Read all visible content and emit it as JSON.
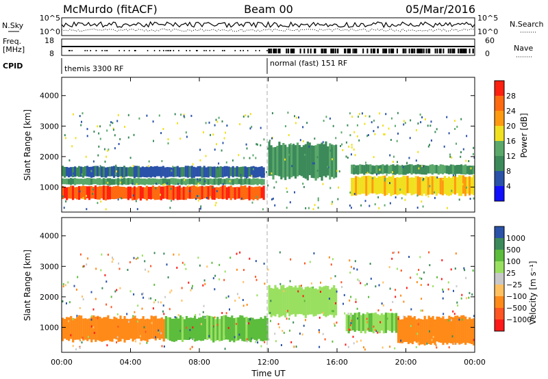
{
  "header": {
    "station": "McMurdo (fitACF)",
    "beam": "Beam 00",
    "date": "05/Mar/2016"
  },
  "top_panels": {
    "nsky_label": "N.Sky",
    "nsearch_label": "N.Search",
    "nsky_ticks": [
      "10^5",
      "10^0"
    ],
    "nsearch_ticks": [
      "10^5",
      "10^0"
    ],
    "freq_label_1": "Freq.",
    "freq_label_2": "[MHz]",
    "freq_ticks": [
      "18",
      "8"
    ],
    "nave_label": "Nave",
    "nave_ticks": [
      "60",
      "0"
    ],
    "cpid_label": "CPID",
    "cpid_segments": [
      {
        "label": "themis 3300 RF",
        "start_hour": 0,
        "end_hour": 12
      },
      {
        "label": "normal (fast) 151 RF",
        "start_hour": 12,
        "end_hour": 24
      }
    ]
  },
  "colors": {
    "power_scale": [
      "#1010ff",
      "#2a52a8",
      "#3c8a5a",
      "#5aa86a",
      "#f0e020",
      "#ff9a10",
      "#ff6a10",
      "#ff2010"
    ],
    "velocity_scale": [
      "#ff1a1a",
      "#ff5522",
      "#ff8a18",
      "#ffc060",
      "#c8c8c8",
      "#9ae060",
      "#5cbc3c",
      "#3c8a5a",
      "#2a52a8"
    ]
  },
  "chart_data": [
    {
      "type": "heatmap",
      "panel": "power",
      "xlabel": "Time UT",
      "ylabel": "Slant Range [km]",
      "x_ticks": [
        "00:00",
        "04:00",
        "08:00",
        "12:00",
        "16:00",
        "20:00",
        "00:00"
      ],
      "y_ticks": [
        "1000",
        "2000",
        "3000",
        "4000"
      ],
      "xlim_hours": [
        0,
        24
      ],
      "ylim_km": [
        180,
        4600
      ],
      "colorbar_label": "Power [dB]",
      "colorbar_ticks": [
        "28",
        "24",
        "20",
        "16",
        "12",
        "8",
        "4"
      ],
      "colorbar_range_db": [
        0,
        32
      ],
      "bands": [
        {
          "t0": 0,
          "t1": 11.8,
          "range_km": [
            560,
            1060
          ],
          "level_db": 27
        },
        {
          "t0": 0,
          "t1": 11.8,
          "range_km": [
            1060,
            1300
          ],
          "level_db": 13
        },
        {
          "t0": 0,
          "t1": 11.8,
          "range_km": [
            1300,
            1700
          ],
          "level_db": 7
        },
        {
          "t0": 12,
          "t1": 16,
          "range_km": [
            1200,
            2500
          ],
          "level_db": 11
        },
        {
          "t0": 16.8,
          "t1": 24,
          "range_km": [
            700,
            1400
          ],
          "level_db": 19
        },
        {
          "t0": 16.8,
          "t1": 24,
          "range_km": [
            1400,
            1750
          ],
          "level_db": 11
        }
      ]
    },
    {
      "type": "heatmap",
      "panel": "velocity",
      "xlabel": "Time UT",
      "ylabel": "Slant Range [km]",
      "x_ticks": [
        "00:00",
        "04:00",
        "08:00",
        "12:00",
        "16:00",
        "20:00",
        "00:00"
      ],
      "y_ticks": [
        "1000",
        "2000",
        "3000",
        "4000"
      ],
      "xlim_hours": [
        0,
        24
      ],
      "ylim_km": [
        180,
        4600
      ],
      "colorbar_label": "Velocity [m s⁻¹]",
      "colorbar_ticks": [
        "1000",
        "500",
        "100",
        "25",
        "−25",
        "−100",
        "−500",
        "−1000"
      ],
      "bands": [
        {
          "t0": 0,
          "t1": 6,
          "range_km": [
            500,
            1400
          ],
          "velocity": -250
        },
        {
          "t0": 6,
          "t1": 12,
          "range_km": [
            500,
            1400
          ],
          "velocity": 150
        },
        {
          "t0": 12,
          "t1": 16,
          "range_km": [
            1300,
            2400
          ],
          "velocity": 60
        },
        {
          "t0": 16.5,
          "t1": 19.5,
          "range_km": [
            800,
            1500
          ],
          "velocity": 100
        },
        {
          "t0": 19.5,
          "t1": 24,
          "range_km": [
            400,
            1400
          ],
          "velocity": -300
        }
      ]
    }
  ]
}
